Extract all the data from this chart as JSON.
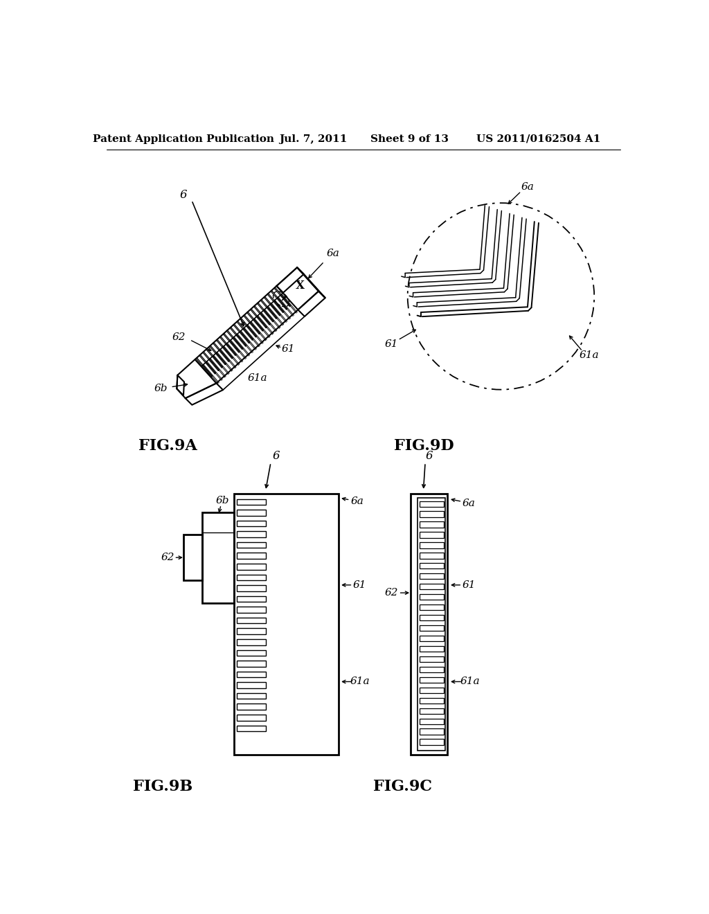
{
  "header_left": "Patent Application Publication",
  "header_mid": "Jul. 7, 2011",
  "header_right_sheet": "Sheet 9 of 13",
  "header_right_num": "US 2011/0162504 A1",
  "bg_color": "#ffffff",
  "line_color": "#000000",
  "fig9a_label": "FIG.9A",
  "fig9b_label": "FIG.9B",
  "fig9c_label": "FIG.9C",
  "fig9d_label": "FIG.9D",
  "ref_6": "6",
  "ref_6a": "6a",
  "ref_6b": "6b",
  "ref_61": "61",
  "ref_61a": "61a",
  "ref_62": "62",
  "ref_X": "X"
}
